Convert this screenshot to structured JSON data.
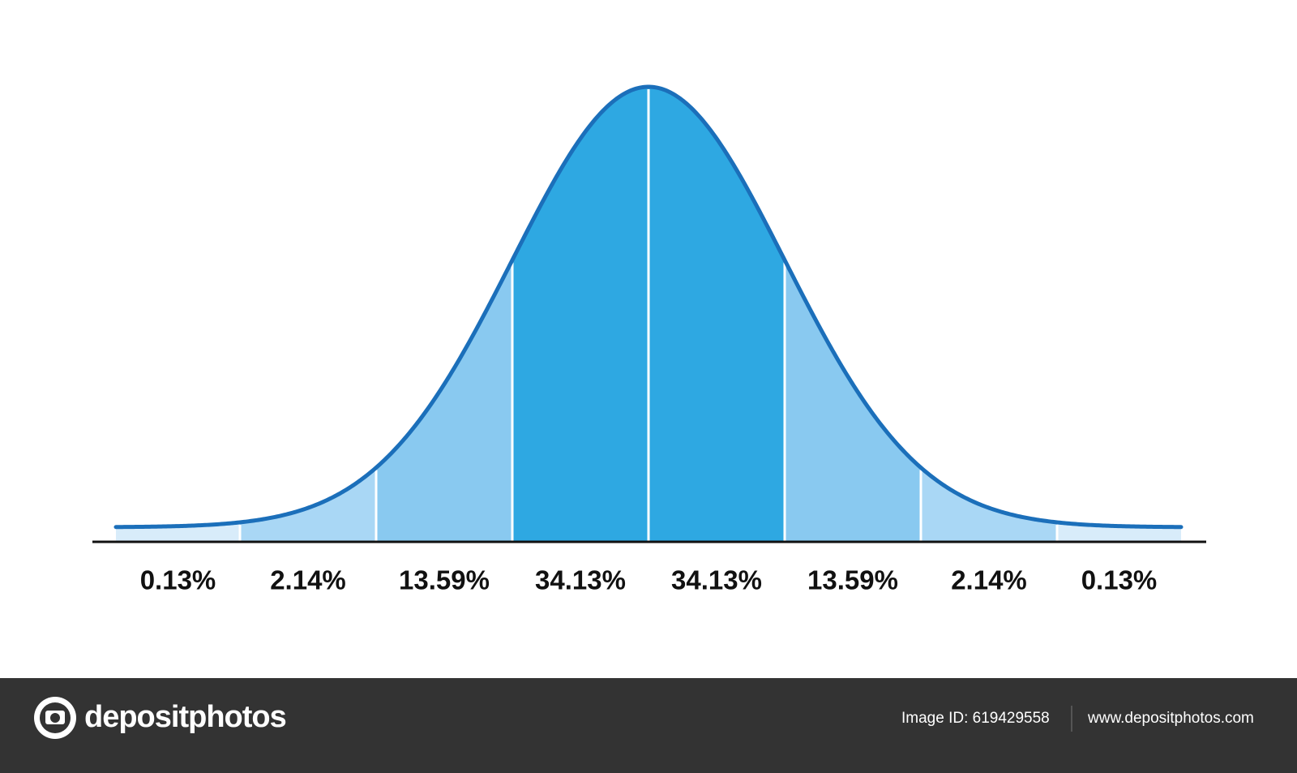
{
  "chart_data": {
    "type": "normal",
    "values": [
      0.13,
      2.14,
      13.59,
      34.13,
      34.13,
      13.59,
      2.14,
      0.13
    ],
    "value_labels": [
      "0.13%",
      "2.14%",
      "13.59%",
      "34.13%",
      "34.13%",
      "13.59%",
      "2.14%",
      "0.13%"
    ],
    "colors": [
      "#d8ecfa",
      "#a9d7f5",
      "#89c9f0",
      "#2ea8e2",
      "#2ea8e2",
      "#89c9f0",
      "#a9d7f5",
      "#d8ecfa"
    ],
    "line_color": "#1b6fba"
  },
  "footer": {
    "brand": "depositphotos",
    "image_id": "Image ID: 619429558",
    "url": "www.depositphotos.com"
  }
}
